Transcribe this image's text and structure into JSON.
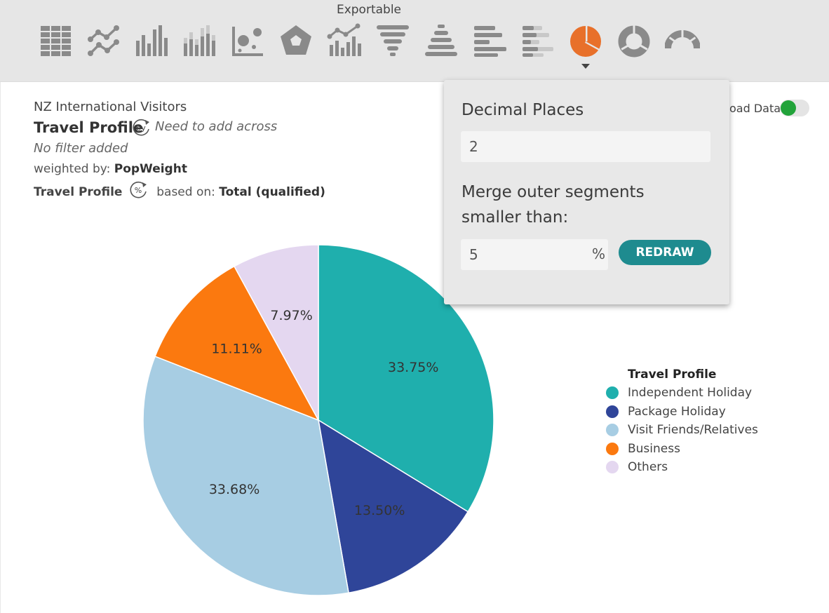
{
  "toolbar": {
    "title": "Exportable",
    "icons": [
      "table-icon",
      "line-chart-icon",
      "bar-chart-icon",
      "stacked-bar-chart-icon",
      "scatter-chart-icon",
      "radar-chart-icon",
      "combo-chart-icon",
      "funnel-chart-icon",
      "pyramid-chart-icon",
      "horizontal-bar-chart-icon",
      "stacked-horizontal-bar-chart-icon",
      "pie-chart-icon",
      "donut-chart-icon",
      "gauge-chart-icon"
    ],
    "active_icon": "pie-chart-icon",
    "icon_color": "#8a8a8a",
    "active_color": "#e8702a"
  },
  "header": {
    "subtitle": "NZ International Visitors",
    "question": "Travel Profile",
    "by_badge": "by",
    "across_note": "Need to add across",
    "filter_note": "No filter added",
    "weighted_prefix": "weighted by:",
    "weighted_value": "PopWeight",
    "based_question": "Travel Profile",
    "pct_badge": "%",
    "based_prefix": "based on:",
    "based_value": "Total (qualified)"
  },
  "load_data": {
    "label": "oad Data:",
    "on": true,
    "color": "#22a33a"
  },
  "chart_data": {
    "type": "pie",
    "categories": [
      "Independent Holiday",
      "Package Holiday",
      "Visit Friends/Relatives",
      "Business",
      "Others"
    ],
    "values": [
      33.75,
      13.5,
      33.68,
      11.11,
      7.97
    ],
    "labels": [
      "33.75%",
      "13.50%",
      "33.68%",
      "11.11%",
      "7.97%"
    ],
    "colors": [
      "#1fafad",
      "#2f4599",
      "#a7cde3",
      "#fb790f",
      "#e4d7f0"
    ],
    "legend_title": "Travel Profile",
    "legend_position": "right"
  },
  "popup": {
    "decimal_label": "Decimal Places",
    "decimal_value": "2",
    "merge_label_line1": "Merge outer segments",
    "merge_label_line2": "smaller than:",
    "merge_value": "5",
    "merge_unit": "%",
    "redraw_label": "REDRAW"
  }
}
